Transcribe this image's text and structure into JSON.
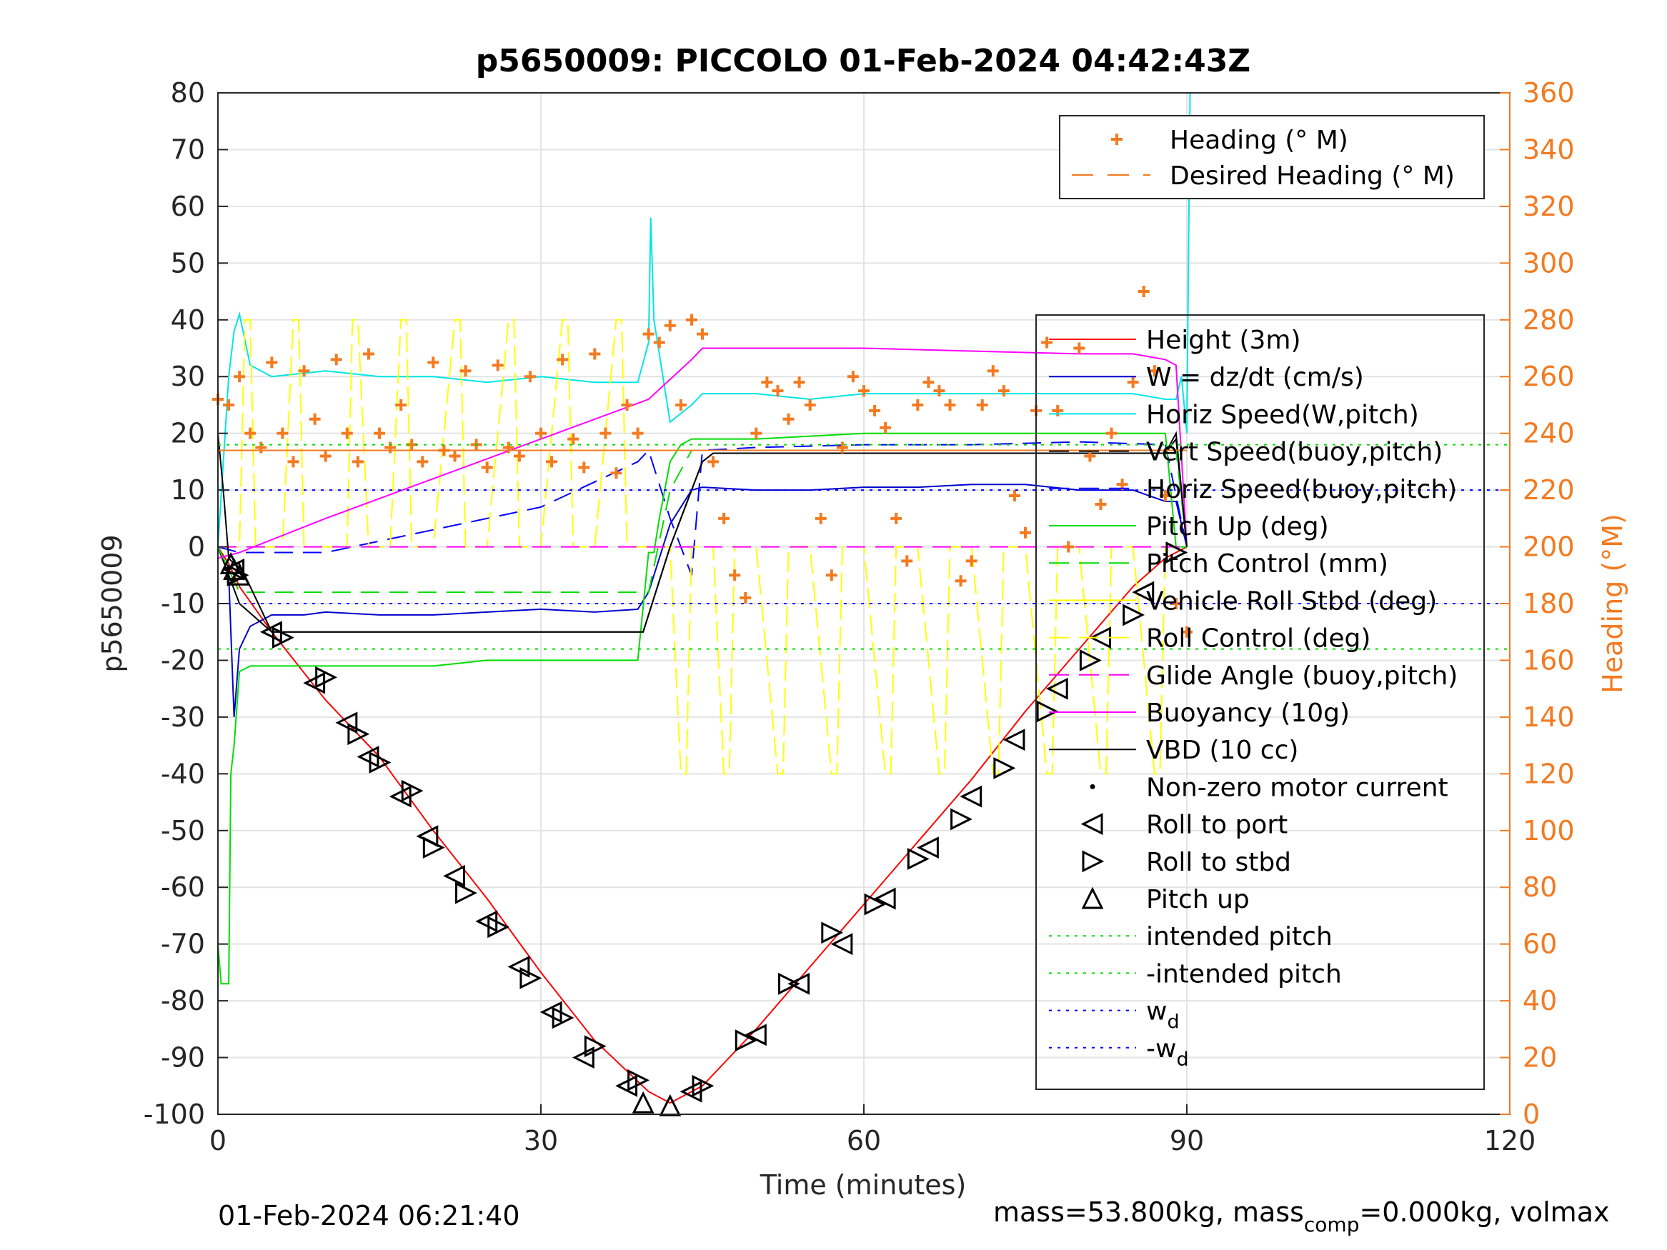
{
  "chart_data": {
    "type": "line",
    "title": "p5650009: PICCOLO 01-Feb-2024 04:42:43Z",
    "xlabel": "Time (minutes)",
    "ylabel": "p5650009",
    "y2label": "Heading (°M)",
    "xlim": [
      0,
      120
    ],
    "ylim": [
      -100,
      80
    ],
    "y2lim": [
      0,
      360
    ],
    "xticks": [
      "0",
      "30",
      "60",
      "90",
      "120"
    ],
    "yticks": [
      "80",
      "70",
      "60",
      "50",
      "40",
      "30",
      "20",
      "10",
      "0",
      "-10",
      "-20",
      "-30",
      "-40",
      "-50",
      "-60",
      "-70",
      "-80",
      "-90",
      "-100"
    ],
    "y2ticks": [
      "360",
      "340",
      "320",
      "300",
      "280",
      "260",
      "240",
      "220",
      "200",
      "180",
      "160",
      "140",
      "120",
      "100",
      "80",
      "60",
      "40",
      "20",
      "0"
    ],
    "grid": true,
    "footer_left": "01-Feb-2024 06:21:40",
    "footer_right": "mass=53.800kg, mass",
    "footer_right_sub": "comp",
    "footer_right_tail": "=0.000kg, volmax",
    "colors": {
      "height": "#ff0000",
      "w": "#0000cc",
      "horiz_w": "#00e5e5",
      "vert_buoy": "#000000",
      "horiz_buoy": "#0000ff",
      "pitch": "#00dd00",
      "pitch_ctrl": "#00dd00",
      "roll": "#ffff00",
      "roll_ctrl": "#ffff00",
      "glide": "#ff00ff",
      "buoy": "#ff00ff",
      "vbd": "#000000",
      "heading": "#f47a20",
      "intended": "#00dd00",
      "wd": "#0000ff"
    },
    "legend_heading": [
      {
        "label": "Heading (° M)",
        "style": "plus"
      },
      {
        "label": "Desired Heading (° M)",
        "style": "dash"
      }
    ],
    "legend_main": [
      {
        "label": "Height (3m)",
        "key": "height",
        "style": "solid"
      },
      {
        "label": "W = dz/dt (cm/s)",
        "key": "w",
        "style": "solid"
      },
      {
        "label": "Horiz Speed(W,pitch)",
        "key": "horiz_w",
        "style": "solid"
      },
      {
        "label": "Vert Speed(buoy,pitch)",
        "key": "vert_buoy",
        "style": "dash"
      },
      {
        "label": "Horiz Speed(buoy,pitch)",
        "key": "horiz_buoy",
        "style": "dash"
      },
      {
        "label": "Pitch Up (deg)",
        "key": "pitch",
        "style": "solid"
      },
      {
        "label": "Pitch Control (mm)",
        "key": "pitch_ctrl",
        "style": "dash"
      },
      {
        "label": "Vehicle Roll Stbd (deg)",
        "key": "roll",
        "style": "solid"
      },
      {
        "label": "Roll Control (deg)",
        "key": "roll_ctrl",
        "style": "dash"
      },
      {
        "label": "Glide Angle (buoy,pitch)",
        "key": "glide",
        "style": "dash"
      },
      {
        "label": "Buoyancy (10g)",
        "key": "buoy",
        "style": "solid"
      },
      {
        "label": "VBD (10 cc)",
        "key": "vbd",
        "style": "solid"
      },
      {
        "label": "Non-zero motor current",
        "key": "vbd",
        "style": "dot"
      },
      {
        "label": "Roll to port",
        "key": "vbd",
        "style": "tri-left"
      },
      {
        "label": "Roll to stbd",
        "key": "vbd",
        "style": "tri-right"
      },
      {
        "label": "Pitch up",
        "key": "vbd",
        "style": "tri-up"
      },
      {
        "label": "intended pitch",
        "key": "intended",
        "style": "dotted"
      },
      {
        "label": "-intended pitch",
        "key": "intended",
        "style": "dotted"
      },
      {
        "label": "w",
        "sub": "d",
        "key": "wd",
        "style": "dotted"
      },
      {
        "label": "-w",
        "sub": "d",
        "key": "wd",
        "style": "dotted"
      }
    ],
    "series": [
      {
        "key": "height",
        "x": [
          0,
          1,
          2,
          5,
          10,
          15,
          20,
          25,
          30,
          35,
          40,
          42,
          45,
          50,
          55,
          60,
          65,
          70,
          75,
          80,
          85,
          88,
          90
        ],
        "y": [
          0,
          -3,
          -7,
          -15,
          -27,
          -37,
          -50,
          -62,
          -75,
          -87,
          -96,
          -98,
          -95,
          -85,
          -74,
          -63,
          -52,
          -41,
          -29,
          -18,
          -7,
          -2,
          0
        ]
      },
      {
        "key": "w",
        "x": [
          0,
          1,
          1.5,
          2,
          3,
          5,
          8,
          10,
          15,
          20,
          25,
          30,
          35,
          39,
          40,
          42,
          44,
          45,
          50,
          55,
          60,
          65,
          70,
          75,
          80,
          85,
          88,
          89,
          90
        ],
        "y": [
          0,
          -5,
          -30,
          -18,
          -14,
          -12,
          -12,
          -11.5,
          -12,
          -12,
          -11.5,
          -11,
          -11.5,
          -11,
          -8,
          4,
          10,
          10.5,
          10,
          10,
          10.5,
          10.5,
          11,
          11,
          10,
          10,
          8,
          8,
          0
        ]
      },
      {
        "key": "horiz_w",
        "x": [
          0,
          1,
          1.5,
          2,
          3,
          5,
          10,
          15,
          20,
          25,
          30,
          35,
          39,
          40,
          40.2,
          40.5,
          42,
          44,
          45,
          50,
          55,
          60,
          65,
          70,
          75,
          80,
          85,
          88,
          89,
          89.5,
          90,
          90.3
        ],
        "y": [
          0,
          30,
          38,
          41,
          32,
          30,
          31,
          30,
          30,
          29,
          30,
          29,
          29,
          36,
          58,
          40,
          22,
          25,
          27,
          27,
          26,
          27,
          27,
          27,
          27,
          27,
          27,
          26,
          26,
          30,
          20,
          80
        ]
      },
      {
        "key": "vert_buoy",
        "x": [
          0,
          1,
          2,
          5,
          6,
          39,
          39.5,
          42,
          44,
          45,
          46,
          88,
          89,
          90
        ],
        "y": [
          0,
          -5,
          -10,
          -15,
          -15,
          -15,
          -15,
          0,
          10,
          15,
          16.5,
          16.5,
          19,
          0
        ]
      },
      {
        "key": "horiz_buoy",
        "x": [
          0,
          2,
          10,
          20,
          30,
          39,
          40,
          42,
          44,
          45,
          50,
          60,
          70,
          80,
          88,
          90
        ],
        "y": [
          0,
          -1,
          -1,
          3,
          7,
          15,
          17,
          5,
          -5,
          17,
          17.5,
          18,
          18,
          18.5,
          18,
          0
        ]
      },
      {
        "key": "pitch",
        "x": [
          0,
          0.3,
          1,
          1.2,
          1.5,
          2,
          3,
          5,
          10,
          15,
          20,
          25,
          30,
          35,
          39,
          40,
          40.5,
          41,
          42,
          43,
          44,
          45,
          50,
          55,
          60,
          65,
          70,
          75,
          80,
          85,
          88,
          89,
          90
        ],
        "y": [
          -70,
          -77,
          -77,
          -40,
          -35,
          -22,
          -21,
          -21,
          -21,
          -21,
          -21,
          -20,
          -20,
          -20,
          -20,
          -1,
          -1,
          5,
          15,
          18,
          19,
          19,
          19,
          19.5,
          20,
          20,
          20,
          20,
          20,
          20,
          20,
          0,
          0
        ]
      },
      {
        "key": "pitch_ctrl",
        "x": [
          0,
          2,
          5,
          39,
          40,
          42,
          44,
          45,
          88,
          89,
          90
        ],
        "y": [
          0,
          -8,
          -8,
          -8,
          -8,
          10,
          17,
          17,
          17,
          17,
          0
        ]
      },
      {
        "key": "roll",
        "x": [
          0,
          2,
          2.5,
          3,
          3.5,
          4,
          6,
          7,
          7.5,
          8,
          10,
          12,
          12.5,
          13,
          14,
          16,
          17,
          17.5,
          18,
          20,
          22,
          22.5,
          23,
          25,
          27,
          27.5,
          28,
          30,
          32,
          32.5,
          33,
          35,
          37,
          37.5,
          38,
          40,
          42,
          43,
          43.5,
          44,
          46,
          47,
          47.5,
          48,
          50,
          52,
          52.5,
          53,
          55,
          57,
          57.5,
          58,
          60,
          62,
          62.5,
          63,
          65,
          67,
          67.5,
          68,
          70,
          72,
          72.5,
          73,
          75,
          77,
          77.5,
          78,
          80,
          82,
          82.5,
          83,
          85,
          87,
          87.5,
          88,
          90
        ],
        "y": [
          0,
          0,
          40,
          40,
          0,
          0,
          0,
          40,
          40,
          0,
          0,
          0,
          40,
          40,
          0,
          0,
          40,
          40,
          0,
          0,
          40,
          40,
          0,
          0,
          40,
          40,
          0,
          0,
          40,
          40,
          0,
          0,
          40,
          40,
          0,
          0,
          0,
          -40,
          -40,
          0,
          0,
          -40,
          -40,
          0,
          0,
          -40,
          -40,
          0,
          0,
          -40,
          -40,
          0,
          0,
          -40,
          -40,
          0,
          0,
          -40,
          -40,
          0,
          0,
          -40,
          -40,
          0,
          0,
          -40,
          -40,
          0,
          0,
          -40,
          -40,
          0,
          0,
          -40,
          -40,
          0,
          0
        ]
      },
      {
        "key": "glide",
        "x": [
          0,
          45,
          46,
          88,
          90
        ],
        "y": [
          0,
          0,
          0,
          0,
          0
        ]
      },
      {
        "key": "buoy",
        "x": [
          0,
          2,
          10,
          20,
          30,
          40,
          44,
          45,
          50,
          60,
          70,
          80,
          85,
          88,
          89,
          90
        ],
        "y": [
          -2,
          -1,
          5,
          12,
          19,
          26,
          33,
          35,
          35,
          35,
          34.5,
          34,
          34,
          33,
          32,
          0
        ]
      },
      {
        "key": "vbd",
        "x": [
          0,
          0.5,
          1,
          1.5,
          2,
          5,
          39,
          39.5,
          42,
          45,
          46,
          88,
          89,
          90
        ],
        "y": [
          20,
          10,
          -2,
          -3,
          -3,
          -15,
          -15,
          -15,
          0,
          15,
          16.5,
          16.5,
          20,
          0
        ]
      },
      {
        "key": "heading",
        "x": [
          0,
          1,
          2,
          3,
          4,
          5,
          6,
          7,
          8,
          9,
          10,
          11,
          12,
          13,
          14,
          15,
          16,
          17,
          18,
          19,
          20,
          21,
          22,
          23,
          24,
          25,
          26,
          27,
          28,
          29,
          30,
          31,
          32,
          33,
          34,
          35,
          36,
          37,
          38,
          39,
          40,
          41,
          42,
          43,
          44,
          45,
          46,
          47,
          48,
          49,
          50,
          51,
          52,
          53,
          54,
          55,
          56,
          57,
          58,
          59,
          60,
          61,
          62,
          63,
          64,
          65,
          66,
          67,
          68,
          69,
          70,
          71,
          72,
          73,
          74,
          75,
          76,
          77,
          78,
          79,
          80,
          81,
          82,
          83,
          84,
          85,
          86,
          87,
          88,
          89,
          90
        ],
        "y": [
          252,
          250,
          260,
          240,
          235,
          265,
          240,
          230,
          262,
          245,
          232,
          266,
          240,
          230,
          268,
          240,
          235,
          250,
          236,
          230,
          265,
          234,
          232,
          262,
          236,
          228,
          264,
          235,
          232,
          260,
          240,
          230,
          266,
          238,
          228,
          268,
          240,
          226,
          250,
          240,
          275,
          272,
          278,
          250,
          280,
          275,
          230,
          210,
          190,
          182,
          240,
          258,
          255,
          245,
          258,
          250,
          210,
          190,
          235,
          260,
          255,
          248,
          242,
          210,
          195,
          250,
          258,
          255,
          250,
          188,
          195,
          250,
          262,
          255,
          218,
          205,
          248,
          272,
          248,
          200,
          270,
          232,
          215,
          240,
          222,
          258,
          290,
          262,
          218,
          180,
          170
        ]
      },
      {
        "key": "desired_heading",
        "x": [
          0,
          90
        ],
        "y": [
          234,
          234
        ]
      },
      {
        "key": "intended",
        "x": [
          0,
          120
        ],
        "y": [
          18,
          18
        ]
      },
      {
        "key": "intended_neg",
        "x": [
          0,
          120
        ],
        "y": [
          -18,
          -18
        ]
      },
      {
        "key": "wd",
        "x": [
          0,
          120
        ],
        "y": [
          10,
          10
        ]
      },
      {
        "key": "wd_neg",
        "x": [
          0,
          120
        ],
        "y": [
          -10,
          -10
        ]
      }
    ],
    "markers": {
      "roll_port": {
        "x": [
          1.5,
          5,
          9,
          12,
          14,
          17,
          19.5,
          22,
          25,
          28,
          31,
          34,
          38,
          44,
          50,
          54,
          58,
          62,
          66,
          70,
          74,
          78,
          82,
          86
        ],
        "y": [
          -4,
          -15,
          -24,
          -31,
          -37,
          -44,
          -51,
          -58,
          -66,
          -74,
          -82,
          -90,
          -95,
          -96,
          -86,
          -77,
          -70,
          -62,
          -53,
          -44,
          -34,
          -25,
          -16,
          -8
        ]
      },
      "roll_stbd": {
        "x": [
          1.8,
          6,
          10,
          13,
          15,
          18,
          20,
          23,
          26,
          29,
          32,
          35,
          39,
          45,
          49,
          53,
          57,
          61,
          65,
          69,
          73,
          77,
          81,
          85,
          89
        ],
        "y": [
          -5,
          -16,
          -23,
          -33,
          -38,
          -43,
          -53,
          -61,
          -67,
          -76,
          -83,
          -88,
          -94,
          -95,
          -87,
          -77,
          -68,
          -63,
          -55,
          -48,
          -39,
          -29,
          -20,
          -12,
          -1
        ]
      },
      "pitch_up": {
        "x": [
          1.2,
          1.5,
          2,
          39.5,
          42
        ],
        "y": [
          -3,
          -4,
          -5,
          -98,
          -98.5
        ]
      }
    }
  }
}
